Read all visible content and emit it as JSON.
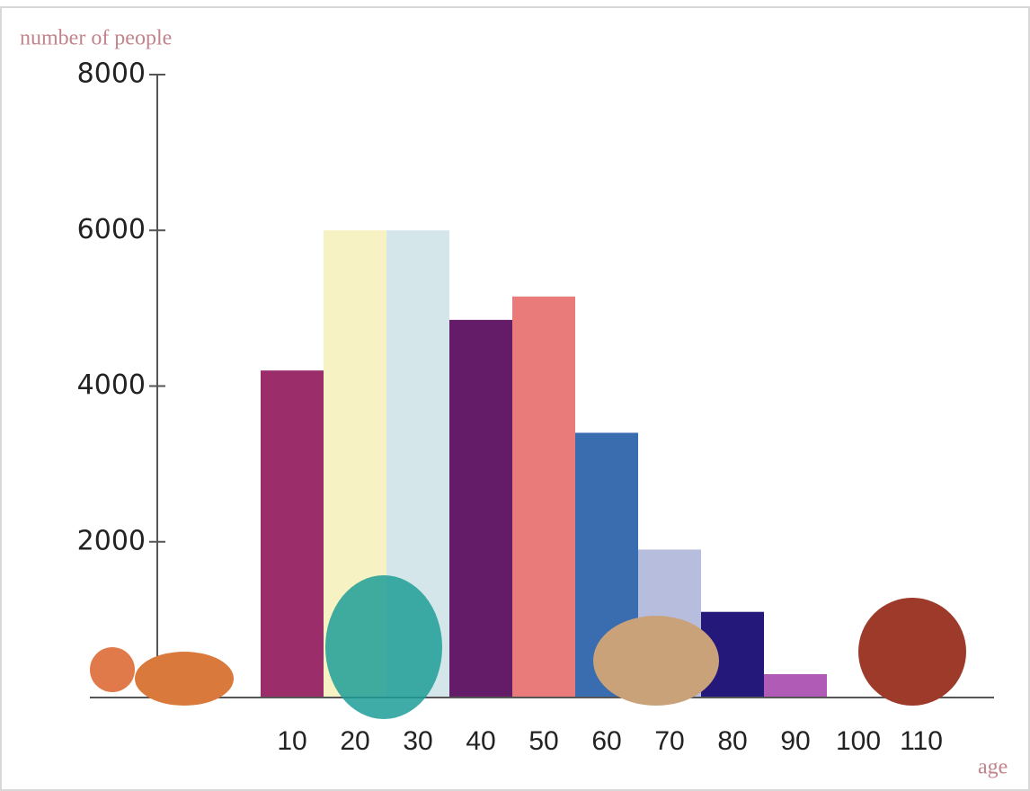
{
  "chart_data": {
    "type": "bar",
    "y_label": "number of people",
    "x_label": "age",
    "categories": [
      "10",
      "20",
      "30",
      "40",
      "50",
      "60",
      "70",
      "80",
      "90",
      "100",
      "110"
    ],
    "values": [
      4200,
      6000,
      6000,
      4850,
      5150,
      3400,
      1900,
      1100,
      300,
      0,
      0
    ],
    "colors": [
      "#9b2d6b",
      "#f7f2c4",
      "#d5e6ea",
      "#641c68",
      "#e97b7b",
      "#3a6db0",
      "#b6bddd",
      "#24197a",
      "#b05bb5",
      "#c0c0c0",
      "#c0c0c0"
    ],
    "ylim": [
      0,
      8000
    ],
    "yticks": [
      2000,
      4000,
      6000,
      8000
    ],
    "grid": false
  }
}
